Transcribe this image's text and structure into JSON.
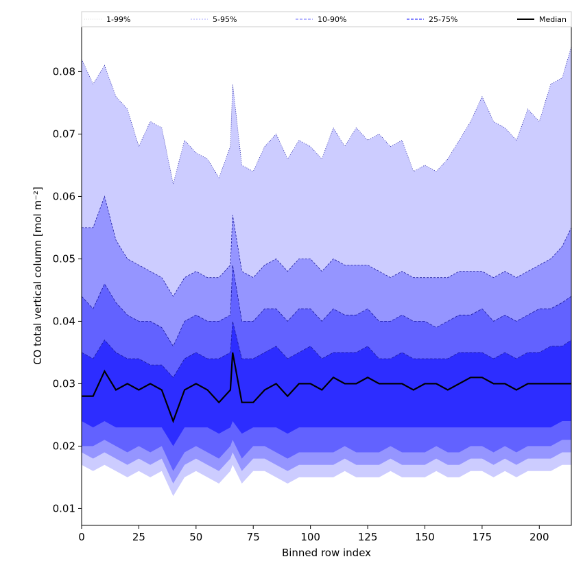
{
  "chart_data": {
    "type": "area",
    "xlabel": "Binned row index",
    "ylabel": "CO total vertical column [mol m⁻²]",
    "xlim": [
      0,
      214
    ],
    "ylim": [
      0.0073,
      0.0873
    ],
    "xticks": [
      0,
      25,
      50,
      75,
      100,
      125,
      150,
      175,
      200
    ],
    "yticks": [
      0.01,
      0.02,
      0.03,
      0.04,
      0.05,
      0.06,
      0.07,
      0.08
    ],
    "ytick_labels": [
      "0.01",
      "0.02",
      "0.03",
      "0.04",
      "0.05",
      "0.06",
      "0.07",
      "0.08"
    ],
    "grid": false,
    "legend_position": "top, horizontal strip above plot",
    "colors": {
      "band_1_99": "#ccccff",
      "band_5_95": "#9595ff",
      "band_10_90": "#6262ff",
      "band_25_75": "#2d2dff",
      "median": "#000000",
      "percentile_line": "#1a1aa0"
    },
    "legend": [
      {
        "label": "1-99%",
        "style": "thin dotted",
        "color": "#ccccff"
      },
      {
        "label": "5-95%",
        "style": "thin dashed",
        "color": "#9595ff"
      },
      {
        "label": "10-90%",
        "style": "dashed",
        "color": "#6262ff"
      },
      {
        "label": "25-75%",
        "style": "dashed",
        "color": "#2d2dff"
      },
      {
        "label": "Median",
        "style": "solid",
        "color": "#000000"
      }
    ],
    "x": [
      0,
      5,
      10,
      15,
      20,
      25,
      30,
      35,
      40,
      45,
      50,
      55,
      60,
      65,
      66,
      70,
      75,
      80,
      85,
      90,
      95,
      100,
      105,
      110,
      115,
      120,
      125,
      130,
      135,
      140,
      145,
      150,
      155,
      160,
      165,
      170,
      175,
      180,
      185,
      190,
      195,
      200,
      205,
      210,
      214
    ],
    "series": [
      {
        "name": "1-99%",
        "type": "band",
        "upper": [
          0.082,
          0.078,
          0.081,
          0.076,
          0.074,
          0.068,
          0.072,
          0.071,
          0.062,
          0.069,
          0.067,
          0.066,
          0.063,
          0.068,
          0.078,
          0.065,
          0.064,
          0.068,
          0.07,
          0.066,
          0.069,
          0.068,
          0.066,
          0.071,
          0.068,
          0.071,
          0.069,
          0.07,
          0.068,
          0.069,
          0.064,
          0.065,
          0.064,
          0.066,
          0.069,
          0.072,
          0.076,
          0.072,
          0.071,
          0.069,
          0.074,
          0.072,
          0.078,
          0.079,
          0.084
        ],
        "lower": [
          0.017,
          0.016,
          0.017,
          0.016,
          0.015,
          0.016,
          0.015,
          0.016,
          0.012,
          0.015,
          0.016,
          0.015,
          0.014,
          0.016,
          0.017,
          0.014,
          0.016,
          0.016,
          0.015,
          0.014,
          0.015,
          0.015,
          0.015,
          0.015,
          0.016,
          0.015,
          0.015,
          0.015,
          0.016,
          0.015,
          0.015,
          0.015,
          0.016,
          0.015,
          0.015,
          0.016,
          0.016,
          0.015,
          0.016,
          0.015,
          0.016,
          0.016,
          0.016,
          0.017,
          0.017
        ]
      },
      {
        "name": "5-95%",
        "type": "band",
        "upper": [
          0.055,
          0.055,
          0.06,
          0.053,
          0.05,
          0.049,
          0.048,
          0.047,
          0.044,
          0.047,
          0.048,
          0.047,
          0.047,
          0.049,
          0.057,
          0.048,
          0.047,
          0.049,
          0.05,
          0.048,
          0.05,
          0.05,
          0.048,
          0.05,
          0.049,
          0.049,
          0.049,
          0.048,
          0.047,
          0.048,
          0.047,
          0.047,
          0.047,
          0.047,
          0.048,
          0.048,
          0.048,
          0.047,
          0.048,
          0.047,
          0.048,
          0.049,
          0.05,
          0.052,
          0.055
        ],
        "lower": [
          0.019,
          0.018,
          0.019,
          0.018,
          0.017,
          0.018,
          0.017,
          0.018,
          0.014,
          0.017,
          0.018,
          0.017,
          0.016,
          0.018,
          0.019,
          0.016,
          0.018,
          0.018,
          0.017,
          0.016,
          0.017,
          0.017,
          0.017,
          0.017,
          0.018,
          0.017,
          0.017,
          0.017,
          0.018,
          0.017,
          0.017,
          0.017,
          0.018,
          0.017,
          0.017,
          0.018,
          0.018,
          0.017,
          0.018,
          0.017,
          0.018,
          0.018,
          0.018,
          0.019,
          0.019
        ]
      },
      {
        "name": "10-90%",
        "type": "band",
        "upper": [
          0.044,
          0.042,
          0.046,
          0.043,
          0.041,
          0.04,
          0.04,
          0.039,
          0.036,
          0.04,
          0.041,
          0.04,
          0.04,
          0.041,
          0.049,
          0.04,
          0.04,
          0.042,
          0.042,
          0.04,
          0.042,
          0.042,
          0.04,
          0.042,
          0.041,
          0.041,
          0.042,
          0.04,
          0.04,
          0.041,
          0.04,
          0.04,
          0.039,
          0.04,
          0.041,
          0.041,
          0.042,
          0.04,
          0.041,
          0.04,
          0.041,
          0.042,
          0.042,
          0.043,
          0.044
        ],
        "lower": [
          0.02,
          0.02,
          0.021,
          0.02,
          0.019,
          0.02,
          0.019,
          0.02,
          0.016,
          0.019,
          0.02,
          0.019,
          0.018,
          0.02,
          0.021,
          0.018,
          0.02,
          0.02,
          0.019,
          0.018,
          0.019,
          0.019,
          0.019,
          0.019,
          0.02,
          0.019,
          0.019,
          0.019,
          0.02,
          0.019,
          0.019,
          0.019,
          0.02,
          0.019,
          0.019,
          0.02,
          0.02,
          0.019,
          0.02,
          0.019,
          0.02,
          0.02,
          0.02,
          0.021,
          0.021
        ]
      },
      {
        "name": "25-75%",
        "type": "band",
        "upper": [
          0.035,
          0.034,
          0.037,
          0.035,
          0.034,
          0.034,
          0.033,
          0.033,
          0.031,
          0.034,
          0.035,
          0.034,
          0.034,
          0.035,
          0.04,
          0.034,
          0.034,
          0.035,
          0.036,
          0.034,
          0.035,
          0.036,
          0.034,
          0.035,
          0.035,
          0.035,
          0.036,
          0.034,
          0.034,
          0.035,
          0.034,
          0.034,
          0.034,
          0.034,
          0.035,
          0.035,
          0.035,
          0.034,
          0.035,
          0.034,
          0.035,
          0.035,
          0.036,
          0.036,
          0.037
        ],
        "lower": [
          0.024,
          0.023,
          0.024,
          0.023,
          0.023,
          0.023,
          0.023,
          0.023,
          0.02,
          0.023,
          0.023,
          0.023,
          0.022,
          0.023,
          0.024,
          0.022,
          0.023,
          0.023,
          0.023,
          0.022,
          0.023,
          0.023,
          0.023,
          0.023,
          0.023,
          0.023,
          0.023,
          0.023,
          0.023,
          0.023,
          0.023,
          0.023,
          0.023,
          0.023,
          0.023,
          0.023,
          0.023,
          0.023,
          0.023,
          0.023,
          0.023,
          0.023,
          0.023,
          0.024,
          0.024
        ]
      },
      {
        "name": "Median",
        "type": "line",
        "values": [
          0.028,
          0.028,
          0.032,
          0.029,
          0.03,
          0.029,
          0.03,
          0.029,
          0.024,
          0.029,
          0.03,
          0.029,
          0.027,
          0.029,
          0.035,
          0.027,
          0.027,
          0.029,
          0.03,
          0.028,
          0.03,
          0.03,
          0.029,
          0.031,
          0.03,
          0.03,
          0.031,
          0.03,
          0.03,
          0.03,
          0.029,
          0.03,
          0.03,
          0.029,
          0.03,
          0.031,
          0.031,
          0.03,
          0.03,
          0.029,
          0.03,
          0.03,
          0.03,
          0.03,
          0.03
        ]
      }
    ]
  }
}
